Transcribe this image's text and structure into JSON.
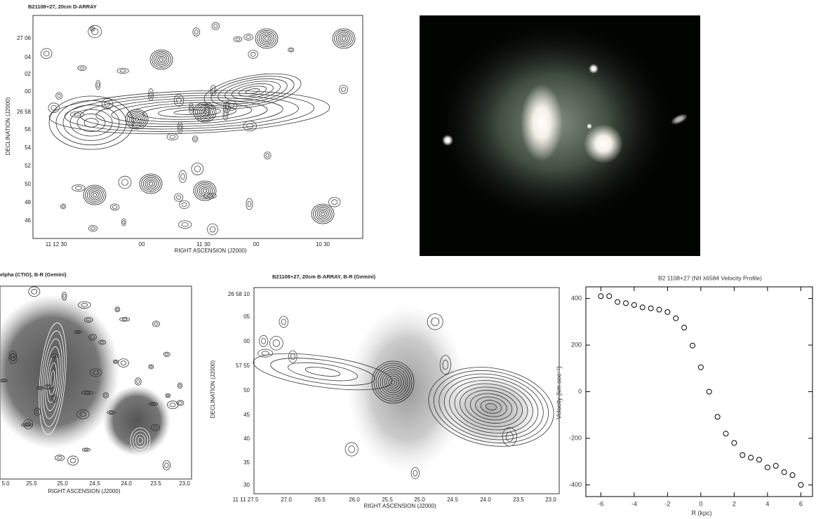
{
  "radio_map": {
    "title": "B21108+27, 20cm D-ARRAY",
    "ylabel": "DECLINATION (J2000)",
    "xlabel": "RIGHT ASCENSION (J2000)",
    "yticks": [
      "27 06",
      "04",
      "02",
      "00",
      "26 58",
      "56",
      "54",
      "52",
      "50",
      "48",
      "46"
    ],
    "xticks": [
      "11 12 30",
      "00",
      "11 30",
      "00",
      "10 30"
    ]
  },
  "overlay_left": {
    "title": "elpha (CTIO), B-R (Gemini)",
    "xlabel": "RIGHT ASCENSION (J2000)",
    "xticks": [
      "5.0",
      "25.5",
      "25.0",
      "24.5",
      "24.0",
      "23.5",
      "23.0"
    ]
  },
  "overlay_mid": {
    "title": "B21108+27, 20cm B-ARRAY, B-R (Gemini)",
    "ylabel": "DECLINATION (J2000)",
    "xlabel": "RIGHT ASCENSION (J2000)",
    "yticks": [
      "26 58 10",
      "05",
      "00",
      "57 55",
      "50",
      "45",
      "40",
      "35",
      "30"
    ],
    "xticks": [
      "11 11 27.5",
      "27.0",
      "26.5",
      "26.0",
      "25.5",
      "25.0",
      "24.5",
      "24.0",
      "23.5",
      "23.0"
    ]
  },
  "chart_data": {
    "type": "scatter",
    "title": "B2 1108+27 (NII λ6584 Velocity Profile)",
    "xlabel": "R (kpc)",
    "ylabel": "Velocity (km sec⁻¹)",
    "x": [
      -6,
      -5.5,
      -5,
      -4.5,
      -4,
      -3.5,
      -3,
      -2.5,
      -2,
      -1.5,
      -1,
      -0.5,
      0,
      0.5,
      1,
      1.5,
      2,
      2.5,
      3,
      3.5,
      4,
      4.5,
      5,
      5.5,
      6
    ],
    "values": [
      410,
      410,
      385,
      380,
      372,
      362,
      358,
      352,
      342,
      315,
      275,
      198,
      105,
      0,
      -108,
      -180,
      -220,
      -272,
      -283,
      -292,
      -325,
      -318,
      -345,
      -358,
      -400
    ],
    "color": "#000000",
    "xlim": [
      -6.9,
      6.7
    ],
    "ylim": [
      -450,
      450
    ],
    "xticks": [
      -6,
      -4,
      -2,
      0,
      2,
      4,
      6
    ],
    "yticks": [
      -400,
      -200,
      0,
      200,
      400
    ]
  }
}
